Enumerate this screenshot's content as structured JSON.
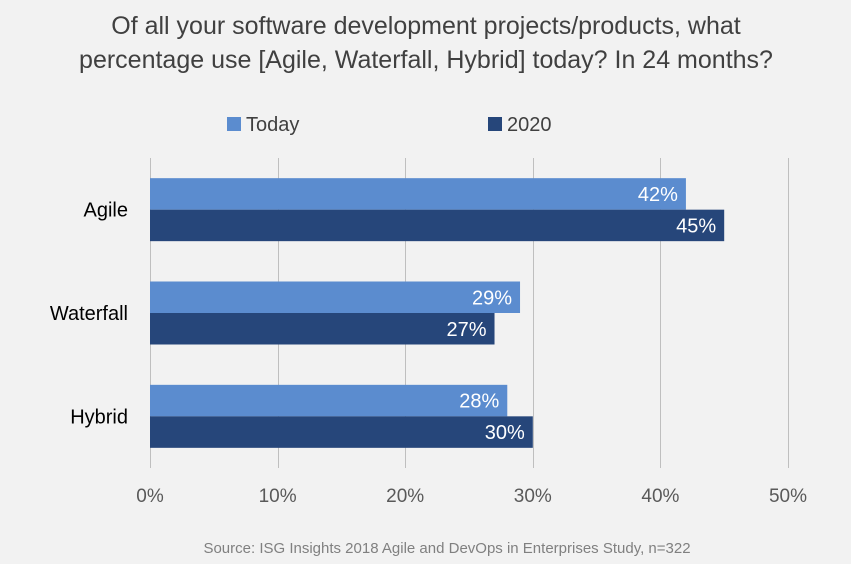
{
  "chart_data": {
    "type": "bar",
    "orientation": "horizontal",
    "title_lines": [
      "Of all your software development projects/products, what",
      "percentage use [Agile, Waterfall, Hybrid] today? In 24 months?"
    ],
    "categories": [
      "Agile",
      "Waterfall",
      "Hybrid"
    ],
    "series": [
      {
        "name": "Today",
        "values": [
          42,
          29,
          28
        ],
        "labels": [
          "42%",
          "29%",
          "28%"
        ],
        "color": "#5b8ccf"
      },
      {
        "name": "2020",
        "values": [
          45,
          27,
          30
        ],
        "labels": [
          "45%",
          "27%",
          "30%"
        ],
        "color": "#26467a"
      }
    ],
    "xlim": [
      0,
      50
    ],
    "x_ticks": [
      0,
      10,
      20,
      30,
      40,
      50
    ],
    "x_tick_labels": [
      "0%",
      "10%",
      "20%",
      "30%",
      "40%",
      "50%"
    ],
    "grid": true,
    "legend_position": "top",
    "source": "Source: ISG Insights 2018 Agile and DevOps in Enterprises Study, n=322"
  }
}
